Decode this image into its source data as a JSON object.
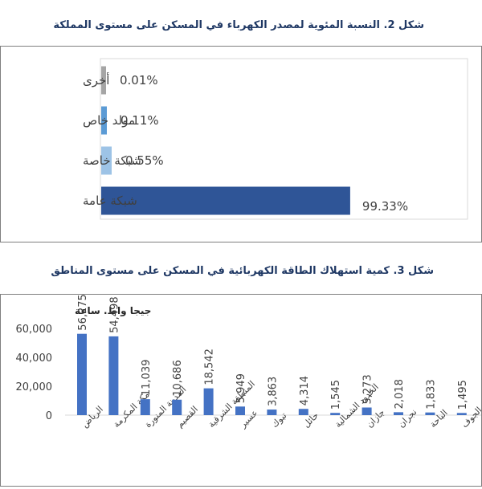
{
  "chart_data": [
    {
      "type": "bar",
      "orientation": "horizontal",
      "title": "شكل 2. النسبة المئوية لمصدر الكهرباء في المسكن على مستوى المملكة",
      "categories": [
        "أخرى",
        "مولد خاص",
        "شبكة خاصة",
        "شبكة عامة"
      ],
      "values": [
        0.01,
        0.11,
        0.55,
        99.33
      ],
      "value_labels": [
        "0.01%",
        "0.11%",
        "0.55%",
        "99.33%"
      ],
      "colors": [
        "#a5a5a5",
        "#5b9bd5",
        "#9dc3e6",
        "#2f5597"
      ],
      "xlim": [
        0,
        100
      ]
    },
    {
      "type": "bar",
      "title": "شكل 3. كمية استهلاك الطاقة الكهربائية في المسكن على مستوى المناطق",
      "ylabel": "جيجا واط. ساعة",
      "categories": [
        "الرياض",
        "مكة المكرمة",
        "المدينة المنورة",
        "القصيم",
        "المنطقة الشرقية",
        "عسير",
        "تبوك",
        "حائل",
        "الحدود الشمالية",
        "جازان",
        "نجران",
        "الباحة",
        "الجوف"
      ],
      "values": [
        56275,
        54498,
        11039,
        10686,
        18542,
        5949,
        3863,
        4314,
        1545,
        5273,
        2018,
        1833,
        1495
      ],
      "value_labels": [
        "56,275",
        "54,498",
        "11,039",
        "10,686",
        "18,542",
        "5,949",
        "3,863",
        "4,314",
        "1,545",
        "5,273",
        "2,018",
        "1,833",
        "1,495"
      ],
      "yticks": [
        "0",
        "20,000",
        "40,000",
        "60,000"
      ],
      "ytick_values": [
        0,
        20000,
        40000,
        60000
      ],
      "ylim": [
        0,
        60000
      ],
      "color": "#4472c4"
    }
  ]
}
